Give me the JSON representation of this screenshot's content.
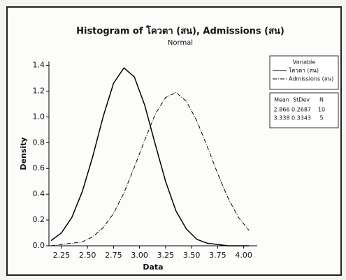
{
  "chart_data": {
    "type": "line",
    "title": "Histogram of โควตา (สน), Admissions (สน)",
    "subtitle": "Normal",
    "x_label": "Data",
    "y_label": "Density",
    "x": [
      2.15,
      2.25,
      2.35,
      2.45,
      2.55,
      2.65,
      2.75,
      2.85,
      2.95,
      3.05,
      3.15,
      3.25,
      3.35,
      3.45,
      3.55,
      3.65,
      3.75,
      3.85,
      3.95,
      4.05
    ],
    "series": [
      {
        "name": "โควตา (สน)",
        "color": "#000000",
        "line_style": "solid",
        "values": [
          0.04,
          0.1,
          0.22,
          0.42,
          0.69,
          1.0,
          1.26,
          1.38,
          1.31,
          1.09,
          0.79,
          0.5,
          0.27,
          0.13,
          0.05,
          0.02,
          0.01,
          0.0,
          0.0,
          0.0
        ]
      },
      {
        "name": "Admissions (สน)",
        "color": "#000000",
        "line_style": "dashdot",
        "values": [
          0.0,
          0.01,
          0.02,
          0.03,
          0.07,
          0.14,
          0.25,
          0.41,
          0.61,
          0.82,
          1.02,
          1.15,
          1.19,
          1.12,
          0.97,
          0.77,
          0.56,
          0.37,
          0.22,
          0.12
        ]
      }
    ],
    "xlim": [
      2.13,
      4.13
    ],
    "ylim": [
      0,
      1.43
    ],
    "xticks": [
      2.25,
      {
        "value": 2.5,
        "label": "2.50"
      },
      2.75,
      {
        "value": 3,
        "label": "3.00"
      },
      3.25,
      {
        "value": 3.5,
        "label": "3.50"
      },
      3.75,
      {
        "value": 4,
        "label": "4.00"
      }
    ],
    "yticks": [
      {
        "value": 0,
        "label": "0.0"
      },
      0.2,
      0.4,
      0.6,
      0.8,
      {
        "value": 1,
        "label": "1.0"
      },
      1.2,
      1.4
    ],
    "legend_title": "Variable",
    "legend_position": "right",
    "stats": {
      "columns": [
        "Mean",
        "StDev",
        "N"
      ],
      "rows": [
        [
          2.866,
          0.2687,
          10
        ],
        [
          3.338,
          0.3343,
          5
        ]
      ]
    }
  }
}
